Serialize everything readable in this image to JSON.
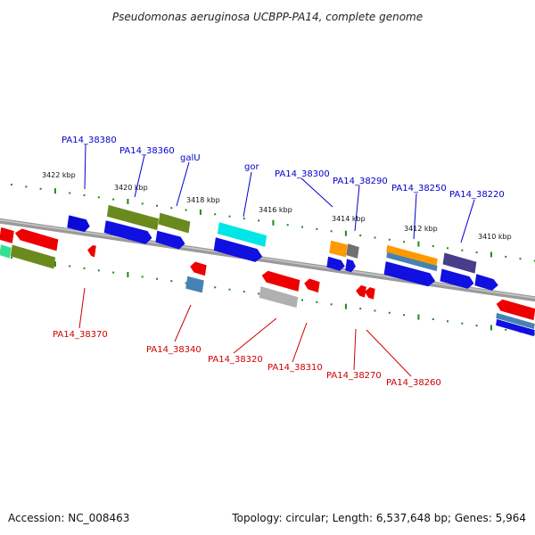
{
  "title": "Pseudomonas aeruginosa UCBPP-PA14, complete genome",
  "footer": {
    "accession": "Accession: NC_008463",
    "stats": "Topology: circular; Length: 6,537,648 bp; Genes: 5,964"
  },
  "colors": {
    "top_label": "#0000cc",
    "bottom_label": "#cc0000",
    "tick": "#1a8a1a",
    "backbone": "#7a7a7a"
  },
  "kbp_labels": [
    "3422 kbp",
    "3420 kbp",
    "3418 kbp",
    "3416 kbp",
    "3414 kbp",
    "3412 kbp",
    "3410 kbp"
  ],
  "top_gene_labels": [
    "PA14_38380",
    "PA14_38360",
    "galU",
    "gor",
    "PA14_38300",
    "PA14_38290",
    "PA14_38250",
    "PA14_38220"
  ],
  "bottom_gene_labels": [
    "PA14_38370",
    "PA14_38340",
    "PA14_38320",
    "PA14_38310",
    "PA14_38270",
    "PA14_38260"
  ]
}
